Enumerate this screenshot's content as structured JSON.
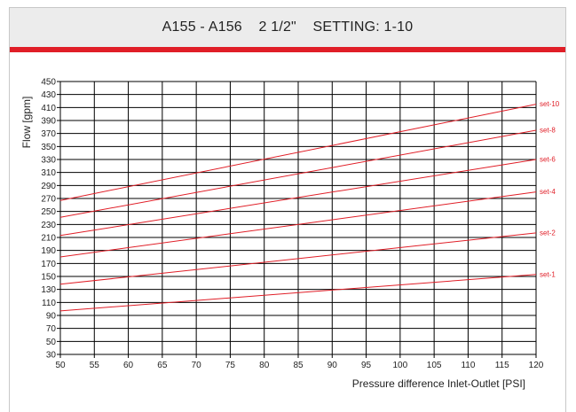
{
  "title": "A155 - A156    2 1/2\"    SETTING: 1-10",
  "colors": {
    "header_bg": "#ececec",
    "accent": "#e01e27",
    "grid": "#000000",
    "series": "#e01e27"
  },
  "chart_data": {
    "type": "line",
    "xlabel": "Pressure difference Inlet-Outlet [PSI]",
    "ylabel": "Flow [gpm]",
    "xlim": [
      50,
      120
    ],
    "ylim": [
      30,
      450
    ],
    "x_ticks": [
      50,
      55,
      60,
      65,
      70,
      75,
      80,
      85,
      90,
      95,
      100,
      105,
      110,
      115,
      120
    ],
    "y_ticks": [
      30,
      50,
      70,
      90,
      110,
      130,
      150,
      170,
      190,
      210,
      230,
      250,
      270,
      290,
      310,
      330,
      350,
      370,
      390,
      410,
      430,
      450
    ],
    "grid": true,
    "series": [
      {
        "name": "set-1",
        "x": [
          50,
          120
        ],
        "y": [
          97,
          153
        ]
      },
      {
        "name": "set-2",
        "x": [
          50,
          120
        ],
        "y": [
          138,
          217
        ]
      },
      {
        "name": "set-4",
        "x": [
          50,
          120
        ],
        "y": [
          180,
          280
        ]
      },
      {
        "name": "set-6",
        "x": [
          50,
          120
        ],
        "y": [
          213,
          330
        ]
      },
      {
        "name": "set-8",
        "x": [
          50,
          120
        ],
        "y": [
          241,
          375
        ]
      },
      {
        "name": "set-10",
        "x": [
          50,
          120
        ],
        "y": [
          267,
          415
        ]
      }
    ]
  }
}
